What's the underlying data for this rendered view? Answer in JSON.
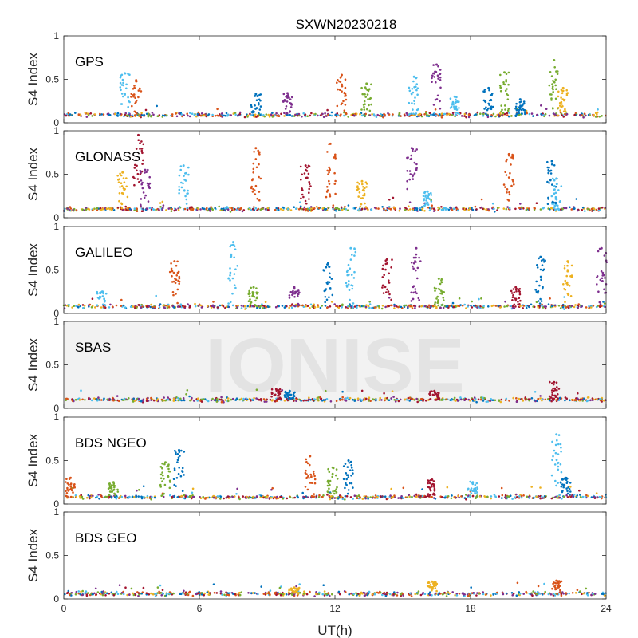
{
  "chart_data": {
    "type": "scatter",
    "title": "SXWN20230218",
    "xlabel": "UT(h)",
    "ylabel": "S4 Index",
    "xlim": [
      0,
      24
    ],
    "ylim": [
      0,
      1
    ],
    "xticks": [
      "0",
      "6",
      "12",
      "18",
      "24"
    ],
    "yticks": [
      "0",
      "0.5",
      "1"
    ],
    "watermark": "IONISE",
    "colors": [
      "#0072BD",
      "#D95319",
      "#EDB120",
      "#7E2F8E",
      "#77AC30",
      "#4DBEEE",
      "#A2142F"
    ],
    "panels": [
      {
        "name": "GPS",
        "baseline": 0.09,
        "spikes": [
          [
            2.7,
            0.57,
            5
          ],
          [
            3.2,
            0.49,
            1
          ],
          [
            8.5,
            0.33,
            0
          ],
          [
            9.9,
            0.34,
            3
          ],
          [
            12.3,
            0.55,
            1
          ],
          [
            13.4,
            0.45,
            4
          ],
          [
            15.5,
            0.53,
            5
          ],
          [
            16.5,
            0.67,
            3
          ],
          [
            17.3,
            0.3,
            5
          ],
          [
            18.8,
            0.4,
            0
          ],
          [
            19.5,
            0.58,
            4
          ],
          [
            20.2,
            0.27,
            0
          ],
          [
            21.7,
            0.72,
            4
          ],
          [
            22.1,
            0.4,
            2
          ]
        ]
      },
      {
        "name": "GLONASS",
        "baseline": 0.1,
        "spikes": [
          [
            2.6,
            0.52,
            2
          ],
          [
            3.3,
            0.95,
            6
          ],
          [
            3.6,
            0.55,
            3
          ],
          [
            5.3,
            0.6,
            5
          ],
          [
            8.5,
            0.8,
            1
          ],
          [
            10.7,
            0.6,
            6
          ],
          [
            11.8,
            0.85,
            1
          ],
          [
            13.2,
            0.42,
            2
          ],
          [
            15.4,
            0.8,
            3
          ],
          [
            16.1,
            0.3,
            5
          ],
          [
            19.7,
            0.73,
            1
          ],
          [
            21.6,
            0.65,
            0
          ],
          [
            21.8,
            0.45,
            5
          ]
        ]
      },
      {
        "name": "GALILEO",
        "baseline": 0.08,
        "spikes": [
          [
            1.7,
            0.25,
            5
          ],
          [
            4.9,
            0.6,
            1
          ],
          [
            7.5,
            0.82,
            5
          ],
          [
            8.4,
            0.3,
            4
          ],
          [
            10.2,
            0.3,
            3
          ],
          [
            11.7,
            0.58,
            0
          ],
          [
            12.7,
            0.75,
            5
          ],
          [
            14.3,
            0.62,
            6
          ],
          [
            15.6,
            0.75,
            3
          ],
          [
            16.6,
            0.4,
            4
          ],
          [
            20.0,
            0.3,
            6
          ],
          [
            21.1,
            0.65,
            0
          ],
          [
            22.3,
            0.6,
            2
          ],
          [
            23.8,
            0.75,
            3
          ]
        ]
      },
      {
        "name": "SBAS",
        "baseline": 0.1,
        "spikes": [
          [
            9.4,
            0.22,
            6
          ],
          [
            10.0,
            0.2,
            0
          ],
          [
            16.4,
            0.2,
            6
          ],
          [
            21.7,
            0.3,
            6
          ]
        ]
      },
      {
        "name": "BDS NGEO",
        "baseline": 0.08,
        "spikes": [
          [
            0.3,
            0.3,
            1
          ],
          [
            2.2,
            0.25,
            4
          ],
          [
            4.5,
            0.48,
            4
          ],
          [
            5.1,
            0.62,
            0
          ],
          [
            10.9,
            0.55,
            1
          ],
          [
            11.9,
            0.42,
            4
          ],
          [
            12.6,
            0.5,
            0
          ],
          [
            16.3,
            0.28,
            6
          ],
          [
            18.1,
            0.25,
            5
          ],
          [
            21.8,
            0.8,
            5
          ],
          [
            22.2,
            0.3,
            0
          ]
        ]
      },
      {
        "name": "BDS GEO",
        "baseline": 0.06,
        "spikes": [
          [
            10.2,
            0.13,
            2
          ],
          [
            16.3,
            0.2,
            2
          ],
          [
            21.8,
            0.21,
            1
          ]
        ]
      }
    ]
  }
}
